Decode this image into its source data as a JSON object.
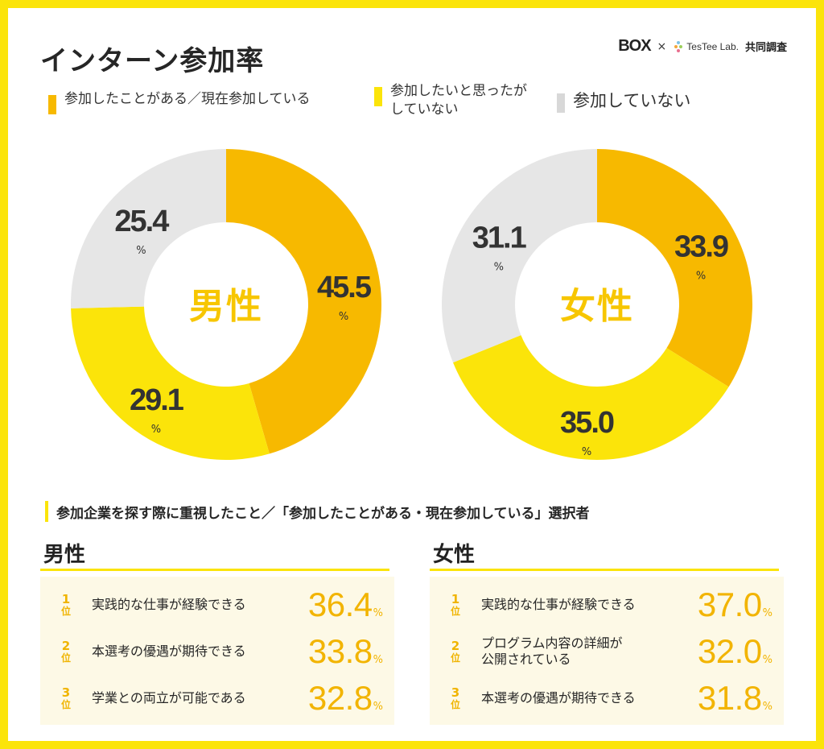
{
  "title": "インターン参加率",
  "credit": {
    "box_logo": "BOX",
    "times": "×",
    "testee_logo": "TesTee Lab.",
    "joint": "共同調査"
  },
  "legend": [
    {
      "lines": [
        "参加したことがある／現在参加している"
      ],
      "color": "#f7b900",
      "size": "normal"
    },
    {
      "lines": [
        "参加したいと思ったが",
        "していない"
      ],
      "color": "#fbe40a",
      "size": "normal"
    },
    {
      "lines": [
        "参加していない"
      ],
      "color": "#d8d8d8",
      "size": "big"
    }
  ],
  "chart_data": [
    {
      "type": "pie",
      "variant": "donut",
      "title": "男性",
      "unit": "%",
      "categories": [
        "参加したことがある／現在参加している",
        "参加したいと思ったがしていない",
        "参加していない"
      ],
      "values": [
        45.5,
        29.1,
        25.4
      ],
      "labels": [
        "45.5",
        "29.1",
        "25.4"
      ],
      "colors": [
        "#f7b900",
        "#fbe40a",
        "#e6e6e6"
      ]
    },
    {
      "type": "pie",
      "variant": "donut",
      "title": "女性",
      "unit": "%",
      "categories": [
        "参加したことがある／現在参加している",
        "参加したいと思ったがしていない",
        "参加していない"
      ],
      "values": [
        33.9,
        35.0,
        31.1
      ],
      "labels": [
        "33.9",
        "35.0",
        "31.1"
      ],
      "colors": [
        "#f7b900",
        "#fbe40a",
        "#e6e6e6"
      ]
    }
  ],
  "section_title": "参加企業を探す際に重視したこと／「参加したことがある・現在参加している」選択者",
  "rank_unit": "位",
  "rankings": [
    {
      "heading": "男性",
      "items": [
        {
          "rank": "1",
          "lines": [
            "実践的な仕事が経験できる"
          ],
          "value": "36.4",
          "unit": "%"
        },
        {
          "rank": "2",
          "lines": [
            "本選考の優遇が期待できる"
          ],
          "value": "33.8",
          "unit": "%"
        },
        {
          "rank": "3",
          "lines": [
            "学業との両立が可能である"
          ],
          "value": "32.8",
          "unit": "%"
        }
      ]
    },
    {
      "heading": "女性",
      "items": [
        {
          "rank": "1",
          "lines": [
            "実践的な仕事が経験できる"
          ],
          "value": "37.0",
          "unit": "%"
        },
        {
          "rank": "2",
          "lines": [
            "プログラム内容の詳細が",
            "公開されている"
          ],
          "value": "32.0",
          "unit": "%"
        },
        {
          "rank": "3",
          "lines": [
            "本選考の優遇が期待できる"
          ],
          "value": "31.8",
          "unit": "%"
        }
      ]
    }
  ]
}
